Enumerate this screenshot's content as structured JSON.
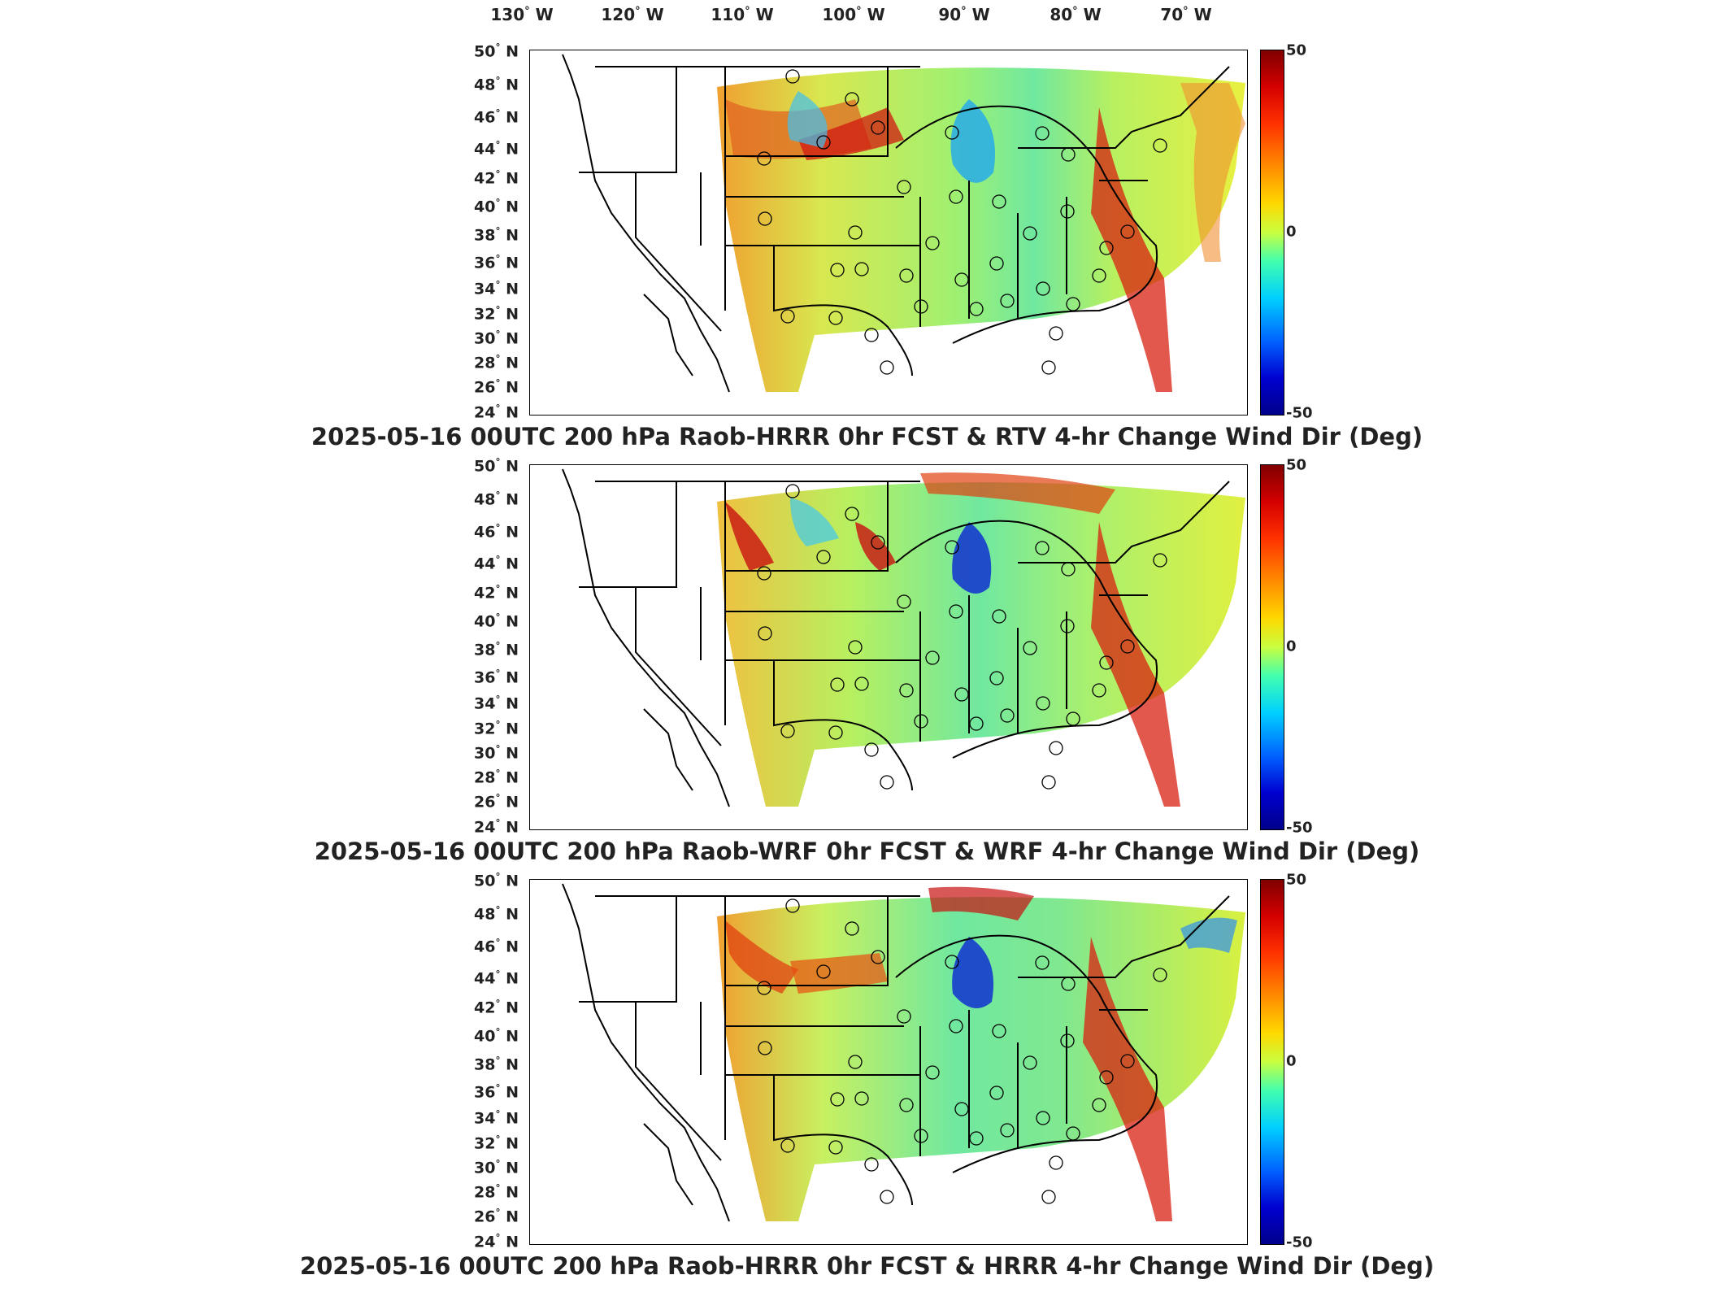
{
  "longitude_labels": [
    {
      "deg": "130",
      "hemi": "W"
    },
    {
      "deg": "120",
      "hemi": "W"
    },
    {
      "deg": "110",
      "hemi": "W"
    },
    {
      "deg": "100",
      "hemi": "W"
    },
    {
      "deg": "90",
      "hemi": "W"
    },
    {
      "deg": "80",
      "hemi": "W"
    },
    {
      "deg": "70",
      "hemi": "W"
    }
  ],
  "latitude_labels": [
    {
      "deg": "50",
      "hemi": "N"
    },
    {
      "deg": "48",
      "hemi": "N"
    },
    {
      "deg": "46",
      "hemi": "N"
    },
    {
      "deg": "44",
      "hemi": "N"
    },
    {
      "deg": "42",
      "hemi": "N"
    },
    {
      "deg": "40",
      "hemi": "N"
    },
    {
      "deg": "38",
      "hemi": "N"
    },
    {
      "deg": "36",
      "hemi": "N"
    },
    {
      "deg": "34",
      "hemi": "N"
    },
    {
      "deg": "32",
      "hemi": "N"
    },
    {
      "deg": "30",
      "hemi": "N"
    },
    {
      "deg": "28",
      "hemi": "N"
    },
    {
      "deg": "26",
      "hemi": "N"
    },
    {
      "deg": "24",
      "hemi": "N"
    }
  ],
  "colorbar": {
    "max": "50",
    "mid": "0",
    "min": "-50",
    "colors": [
      "#800000",
      "#ff3000",
      "#ffd800",
      "#c8ff40",
      "#40ffb0",
      "#00d0ff",
      "#0000d0",
      "#00008b"
    ]
  },
  "panels": [
    {
      "title": "2025-05-16 00UTC 200 hPa Raob-HRRR 0hr FCST & RTV 4-hr Change Wind Dir (Deg)"
    },
    {
      "title": "2025-05-16 00UTC 200 hPa Raob-WRF 0hr FCST & WRF 4-hr Change Wind Dir (Deg)"
    },
    {
      "title": "2025-05-16 00UTC 200 hPa Raob-HRRR 0hr FCST & HRRR 4-hr Change Wind Dir (Deg)"
    }
  ],
  "station_markers": "circle-icon"
}
